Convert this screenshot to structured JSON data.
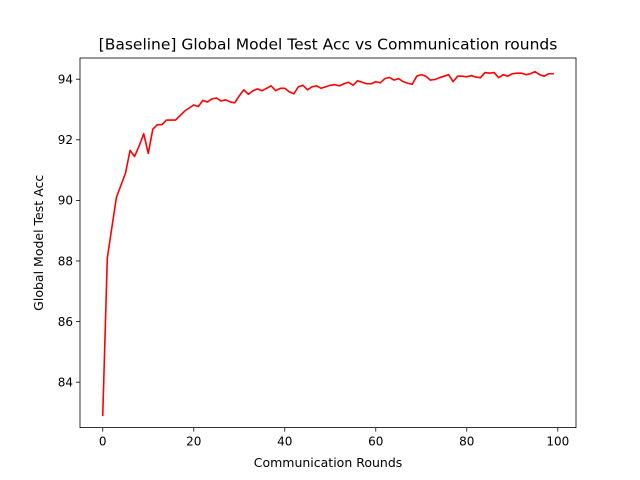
{
  "chart_data": {
    "type": "line",
    "title": "[Baseline] Global Model Test Acc vs Communication rounds",
    "xlabel": "Communication Rounds",
    "ylabel": "Global Model Test Acc",
    "xlim": [
      -5,
      104
    ],
    "ylim": [
      82.5,
      94.7
    ],
    "xticks": [
      0,
      20,
      40,
      60,
      80,
      100
    ],
    "yticks": [
      84,
      86,
      88,
      90,
      92,
      94
    ],
    "grid": false,
    "series": [
      {
        "color": "#ff0000",
        "x": [
          0,
          1,
          2,
          3,
          4,
          5,
          6,
          7,
          8,
          9,
          10,
          11,
          12,
          13,
          14,
          15,
          16,
          17,
          18,
          19,
          20,
          21,
          22,
          23,
          24,
          25,
          26,
          27,
          28,
          29,
          30,
          31,
          32,
          33,
          34,
          35,
          36,
          37,
          38,
          39,
          40,
          41,
          42,
          43,
          44,
          45,
          46,
          47,
          48,
          49,
          50,
          51,
          52,
          53,
          54,
          55,
          56,
          57,
          58,
          59,
          60,
          61,
          62,
          63,
          64,
          65,
          66,
          67,
          68,
          69,
          70,
          71,
          72,
          73,
          74,
          75,
          76,
          77,
          78,
          79,
          80,
          81,
          82,
          83,
          84,
          85,
          86,
          87,
          88,
          89,
          90,
          91,
          92,
          93,
          94,
          95,
          96,
          97,
          98,
          99
        ],
        "y": [
          82.9,
          88.1,
          89.1,
          90.1,
          90.5,
          90.9,
          91.65,
          91.45,
          91.8,
          92.2,
          91.55,
          92.35,
          92.5,
          92.5,
          92.65,
          92.65,
          92.65,
          92.8,
          92.95,
          93.05,
          93.15,
          93.1,
          93.3,
          93.25,
          93.35,
          93.38,
          93.28,
          93.32,
          93.25,
          93.22,
          93.45,
          93.65,
          93.5,
          93.62,
          93.68,
          93.62,
          93.7,
          93.78,
          93.62,
          93.7,
          93.7,
          93.58,
          93.52,
          93.75,
          93.8,
          93.65,
          93.75,
          93.78,
          93.7,
          93.75,
          93.8,
          93.82,
          93.78,
          93.85,
          93.9,
          93.8,
          93.95,
          93.9,
          93.85,
          93.85,
          93.92,
          93.88,
          94.02,
          94.06,
          93.97,
          94.02,
          93.92,
          93.87,
          93.83,
          94.1,
          94.15,
          94.1,
          93.97,
          93.99,
          94.05,
          94.1,
          94.15,
          93.92,
          94.1,
          94.1,
          94.08,
          94.12,
          94.07,
          94.05,
          94.22,
          94.2,
          94.22,
          94.05,
          94.15,
          94.1,
          94.18,
          94.2,
          94.2,
          94.15,
          94.18,
          94.25,
          94.15,
          94.1,
          94.18,
          94.18
        ]
      }
    ]
  }
}
